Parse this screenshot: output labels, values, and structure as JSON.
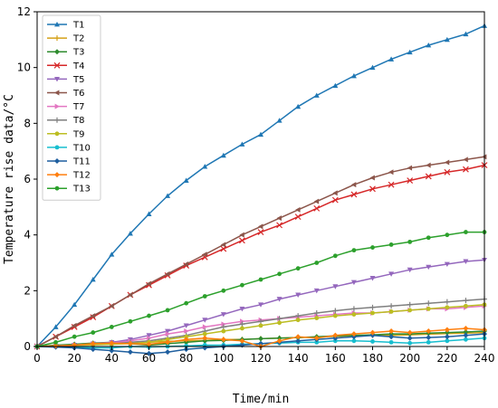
{
  "chart_data": {
    "type": "line",
    "xlabel": "Time/min",
    "ylabel": "Temperature rise data/°C",
    "xlim": [
      0,
      240
    ],
    "ylim": [
      0,
      12
    ],
    "xticks": [
      0,
      20,
      40,
      60,
      80,
      100,
      120,
      140,
      160,
      180,
      200,
      220,
      240
    ],
    "yticks": [
      0,
      2,
      4,
      6,
      8,
      10,
      12
    ],
    "grid": false,
    "legend_position": "top-left",
    "x": [
      0,
      10,
      20,
      30,
      40,
      50,
      60,
      70,
      80,
      90,
      100,
      110,
      120,
      130,
      140,
      150,
      160,
      170,
      180,
      190,
      200,
      210,
      220,
      230,
      240
    ],
    "series": [
      {
        "name": "T1",
        "color": "#1f77b4",
        "marker": "triangle-up",
        "values": [
          0,
          0.7,
          1.5,
          2.4,
          3.3,
          4.05,
          4.75,
          5.4,
          5.95,
          6.45,
          6.85,
          7.25,
          7.6,
          8.1,
          8.6,
          9.0,
          9.35,
          9.7,
          10.0,
          10.3,
          10.55,
          10.8,
          11.0,
          11.2,
          11.5
        ]
      },
      {
        "name": "T2",
        "color": "#d4a017",
        "marker": "tick",
        "values": [
          0,
          0.02,
          0.05,
          0.08,
          0.1,
          0.12,
          0.15,
          0.18,
          0.2,
          0.22,
          0.25,
          0.25,
          0.28,
          0.3,
          0.32,
          0.34,
          0.36,
          0.38,
          0.4,
          0.4,
          0.42,
          0.44,
          0.46,
          0.48,
          0.5
        ]
      },
      {
        "name": "T3",
        "color": "#2e8b2e",
        "marker": "diamond",
        "values": [
          0,
          0.05,
          0.08,
          0.12,
          0.15,
          0.1,
          0.05,
          0.1,
          0.15,
          0.2,
          0.22,
          0.25,
          0.28,
          0.3,
          0.32,
          0.35,
          0.38,
          0.4,
          0.42,
          0.45,
          0.45,
          0.48,
          0.5,
          0.52,
          0.55
        ]
      },
      {
        "name": "T4",
        "color": "#d62728",
        "marker": "x",
        "values": [
          0,
          0.35,
          0.7,
          1.05,
          1.45,
          1.85,
          2.2,
          2.55,
          2.9,
          3.2,
          3.5,
          3.8,
          4.1,
          4.35,
          4.65,
          4.95,
          5.25,
          5.45,
          5.65,
          5.8,
          5.95,
          6.1,
          6.25,
          6.35,
          6.5
        ]
      },
      {
        "name": "T5",
        "color": "#9467bd",
        "marker": "triangle-down",
        "values": [
          0,
          0.02,
          0.05,
          0.1,
          0.15,
          0.25,
          0.4,
          0.55,
          0.75,
          0.95,
          1.15,
          1.35,
          1.5,
          1.7,
          1.85,
          2.0,
          2.15,
          2.3,
          2.45,
          2.6,
          2.75,
          2.85,
          2.95,
          3.05,
          3.1
        ]
      },
      {
        "name": "T6",
        "color": "#8c564b",
        "marker": "triangle-left",
        "values": [
          0,
          0.35,
          0.75,
          1.1,
          1.45,
          1.85,
          2.25,
          2.6,
          2.95,
          3.3,
          3.65,
          4.0,
          4.3,
          4.6,
          4.9,
          5.2,
          5.5,
          5.8,
          6.05,
          6.25,
          6.4,
          6.5,
          6.6,
          6.7,
          6.8
        ]
      },
      {
        "name": "T7",
        "color": "#e377c2",
        "marker": "triangle-right",
        "values": [
          0,
          0.02,
          0.05,
          0.08,
          0.12,
          0.2,
          0.3,
          0.45,
          0.55,
          0.7,
          0.8,
          0.9,
          0.95,
          1.0,
          1.05,
          1.1,
          1.15,
          1.2,
          1.2,
          1.25,
          1.3,
          1.35,
          1.35,
          1.4,
          1.45
        ]
      },
      {
        "name": "T8",
        "color": "#7f7f7f",
        "marker": "plus",
        "values": [
          0,
          0.02,
          0.05,
          0.08,
          0.1,
          0.15,
          0.2,
          0.3,
          0.4,
          0.55,
          0.7,
          0.8,
          0.9,
          1.0,
          1.1,
          1.2,
          1.28,
          1.35,
          1.4,
          1.45,
          1.5,
          1.55,
          1.6,
          1.65,
          1.7
        ]
      },
      {
        "name": "T9",
        "color": "#bcbd22",
        "marker": "circle",
        "values": [
          0,
          0.02,
          0.04,
          0.06,
          0.08,
          0.1,
          0.15,
          0.25,
          0.35,
          0.45,
          0.55,
          0.65,
          0.75,
          0.85,
          0.95,
          1.02,
          1.1,
          1.15,
          1.2,
          1.25,
          1.3,
          1.35,
          1.4,
          1.45,
          1.5
        ]
      },
      {
        "name": "T10",
        "color": "#17becf",
        "marker": "circle",
        "values": [
          0,
          0.0,
          -0.02,
          -0.05,
          -0.05,
          0.0,
          -0.02,
          0.0,
          0.02,
          0.05,
          0.05,
          0.08,
          0.1,
          0.12,
          0.15,
          0.15,
          0.2,
          0.2,
          0.18,
          0.15,
          0.12,
          0.15,
          0.2,
          0.25,
          0.3
        ]
      },
      {
        "name": "T11",
        "color": "#1f5f9f",
        "marker": "diamond",
        "values": [
          0,
          -0.02,
          -0.05,
          -0.1,
          -0.15,
          -0.2,
          -0.25,
          -0.2,
          -0.1,
          -0.05,
          0.0,
          0.05,
          0.1,
          0.15,
          0.2,
          0.25,
          0.3,
          0.35,
          0.4,
          0.35,
          0.3,
          0.32,
          0.35,
          0.4,
          0.45
        ]
      },
      {
        "name": "T12",
        "color": "#ff7f0e",
        "marker": "diamond",
        "values": [
          0,
          0.02,
          0.05,
          0.1,
          0.12,
          0.1,
          0.08,
          0.15,
          0.25,
          0.3,
          0.25,
          0.2,
          0.0,
          0.2,
          0.35,
          0.3,
          0.4,
          0.45,
          0.5,
          0.55,
          0.5,
          0.55,
          0.6,
          0.65,
          0.6
        ]
      },
      {
        "name": "T13",
        "color": "#2ca02c",
        "marker": "circle",
        "values": [
          0,
          0.15,
          0.35,
          0.5,
          0.7,
          0.9,
          1.1,
          1.3,
          1.55,
          1.8,
          2.0,
          2.2,
          2.4,
          2.6,
          2.8,
          3.0,
          3.25,
          3.45,
          3.55,
          3.65,
          3.75,
          3.9,
          4.0,
          4.1,
          4.1
        ]
      }
    ]
  }
}
